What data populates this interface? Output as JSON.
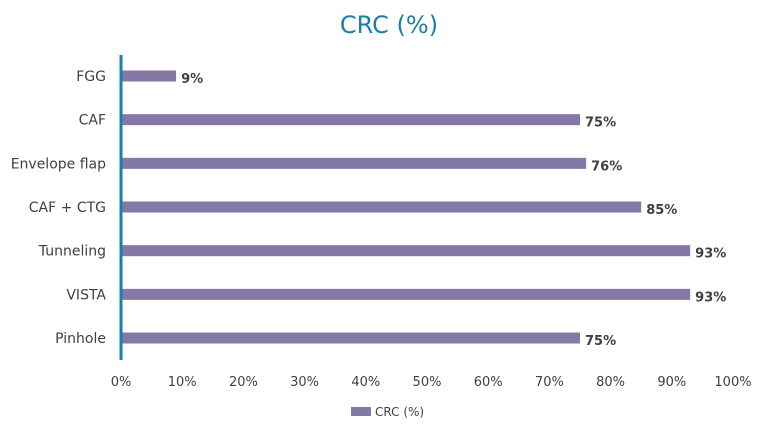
{
  "chart_data": {
    "type": "bar",
    "orientation": "horizontal",
    "title": "CRC (%)",
    "categories": [
      "FGG",
      "CAF",
      "Envelope flap",
      "CAF + CTG",
      "Tunneling",
      "VISTA",
      "Pinhole"
    ],
    "series": [
      {
        "name": "CRC (%)",
        "values": [
          9,
          75,
          76,
          85,
          93,
          93,
          75
        ],
        "data_labels": [
          "9%",
          "75%",
          "76%",
          "85%",
          "93%",
          "93%",
          "75%"
        ]
      }
    ],
    "xlim": [
      0,
      100
    ],
    "x_ticks": [
      0,
      10,
      20,
      30,
      40,
      50,
      60,
      70,
      80,
      90,
      100
    ],
    "x_tick_labels": [
      "0%",
      "10%",
      "20%",
      "30%",
      "40%",
      "50%",
      "60%",
      "70%",
      "80%",
      "90%",
      "100%"
    ],
    "grid": false,
    "legend_position": "bottom"
  },
  "colors": {
    "bar": "#8478a6",
    "title": "#1a7fa8",
    "axis": "#1a7fa8",
    "text": "#404040"
  }
}
